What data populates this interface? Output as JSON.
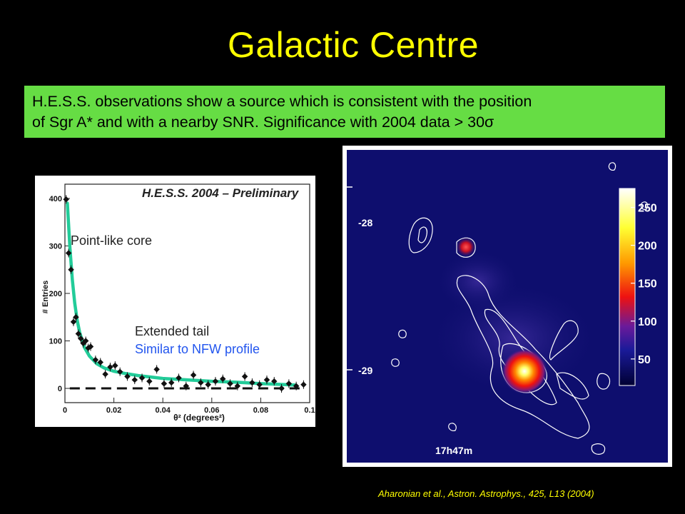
{
  "slide": {
    "title": "Galactic Centre",
    "banner_line1": "H.E.S.S. observations show a source which is consistent with the position",
    "banner_line2": "of Sgr A* and with a nearby SNR. Significance with 2004 data > 30",
    "banner_symbol": "σ",
    "citation": "Aharonian et al., Astron. Astrophys., 425, L13 (2004)"
  },
  "colors": {
    "title": "#ffff00",
    "banner_bg": "#66dd44",
    "fit_curve": "#22cc99",
    "nfw_text": "#2255ee",
    "map_bg": "#0e0e6e"
  },
  "chart_data": [
    {
      "type": "scatter",
      "title": "H.E.S.S. 2004 – Preliminary",
      "xlabel": "θ² (degrees²)",
      "ylabel": "# Entries",
      "xlim": [
        0,
        0.1
      ],
      "ylim": [
        -30,
        430
      ],
      "x_ticks": [
        "0",
        "0.02",
        "0.04",
        "0.06",
        "0.08",
        "0.1"
      ],
      "y_ticks": [
        "0",
        "100",
        "200",
        "300",
        "400"
      ],
      "annotations": [
        "Point-like core",
        "Extended tail",
        "Similar to NFW profile"
      ],
      "series": [
        {
          "kind": "points",
          "x": [
            0.0005,
            0.0015,
            0.0025,
            0.0035,
            0.0045,
            0.0055,
            0.0065,
            0.0075,
            0.0085,
            0.0095,
            0.0105,
            0.0125,
            0.0145,
            0.0165,
            0.0185,
            0.0205,
            0.0225,
            0.0255,
            0.0285,
            0.0315,
            0.0345,
            0.0375,
            0.0405,
            0.0435,
            0.0465,
            0.0495,
            0.0525,
            0.0555,
            0.0585,
            0.0615,
            0.0645,
            0.0675,
            0.0705,
            0.0735,
            0.0765,
            0.0795,
            0.0825,
            0.0855,
            0.0885,
            0.0915,
            0.0945,
            0.0975
          ],
          "y": [
            398,
            285,
            250,
            140,
            150,
            115,
            105,
            95,
            100,
            85,
            88,
            60,
            55,
            30,
            45,
            48,
            35,
            25,
            18,
            22,
            15,
            40,
            10,
            12,
            22,
            5,
            28,
            12,
            8,
            15,
            20,
            10,
            5,
            25,
            12,
            8,
            18,
            15,
            0,
            10,
            5,
            8
          ]
        },
        {
          "kind": "line",
          "name": "fit",
          "x": [
            0.001,
            0.002,
            0.003,
            0.004,
            0.005,
            0.006,
            0.008,
            0.01,
            0.013,
            0.016,
            0.02,
            0.025,
            0.03,
            0.035,
            0.04,
            0.05,
            0.06,
            0.07,
            0.08,
            0.09,
            0.094
          ],
          "y": [
            390,
            298,
            230,
            180,
            144,
            118,
            86,
            68,
            52,
            43,
            36,
            31,
            27,
            24,
            21,
            18,
            15,
            13,
            10,
            8,
            7
          ]
        },
        {
          "kind": "dashed",
          "name": "background",
          "x": [
            0.002,
            0.096
          ],
          "y": [
            0,
            0
          ]
        }
      ]
    },
    {
      "type": "heatmap",
      "colorbar_ticks": [
        "250",
        "200",
        "150",
        "100",
        "50"
      ],
      "y_labels": [
        "-28",
        "-29"
      ],
      "x_label": "17h47m"
    }
  ]
}
